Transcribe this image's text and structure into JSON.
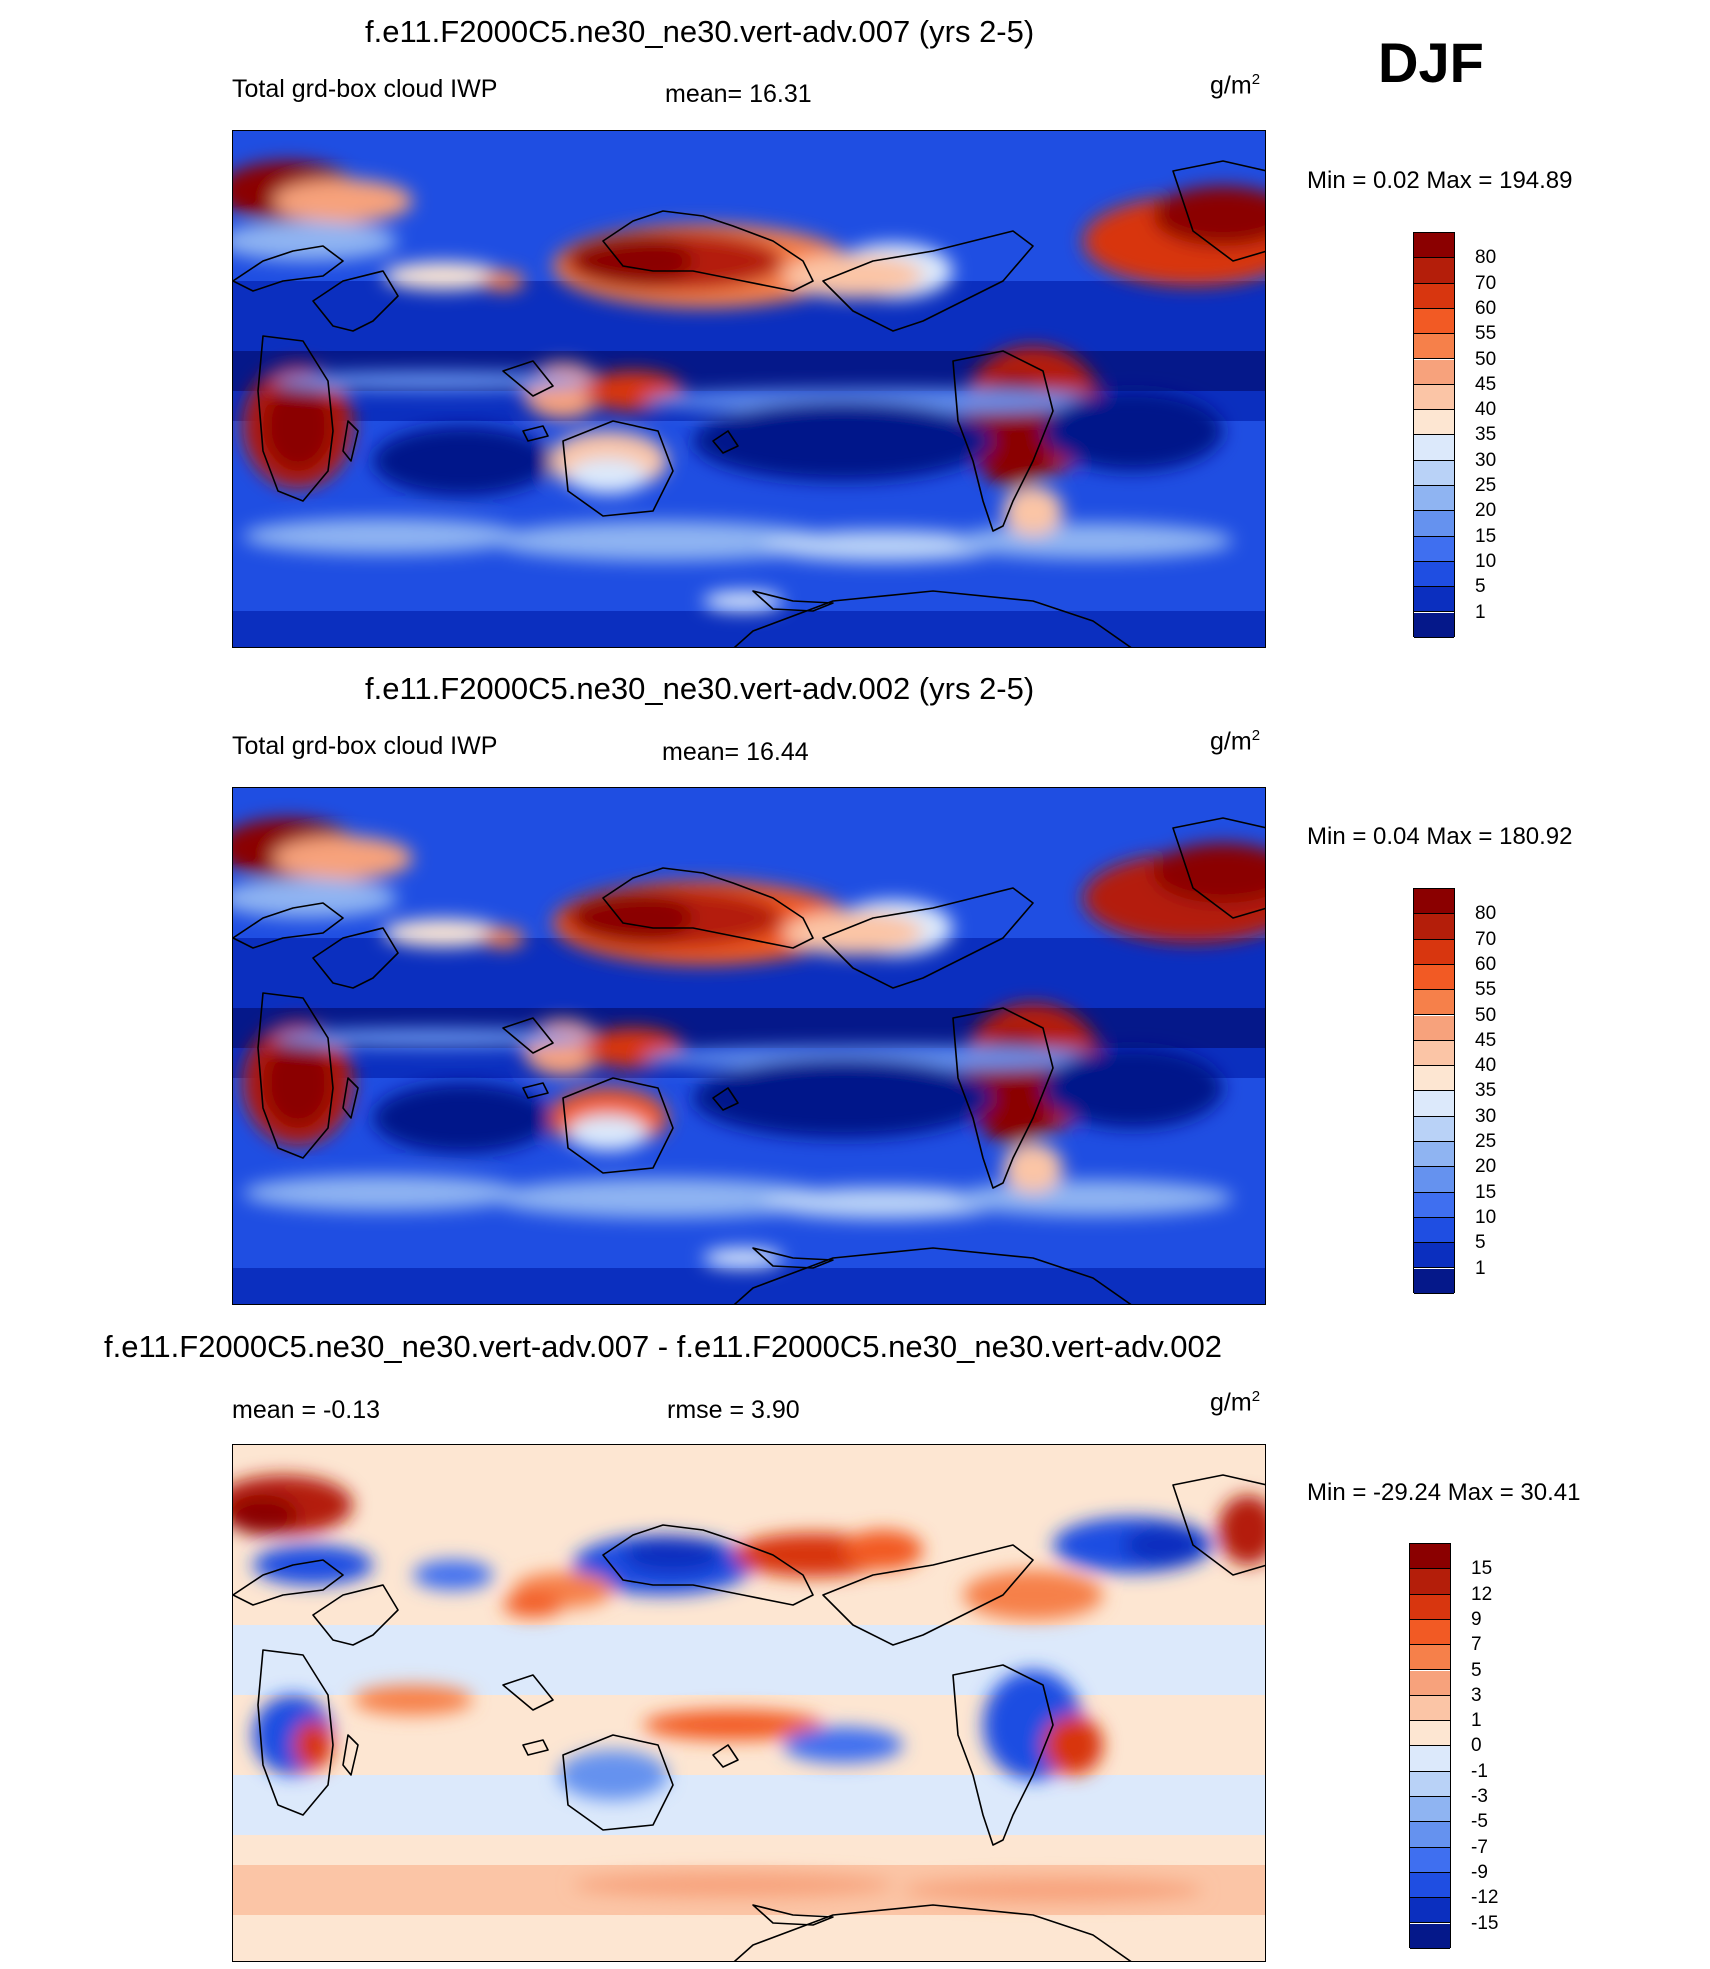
{
  "season": "DJF",
  "units_base": "g/m",
  "units_exp": "2",
  "chart_data": [
    {
      "type": "heatmap",
      "title": "f.e11.F2000C5.ne30_ne30.vert-adv.007 (yrs 2-5)",
      "variable": "Total grd-box cloud IWP",
      "mean_text": "mean=  16.31",
      "minmax_text": "Min =   0.02 Max = 194.89",
      "min": 0.02,
      "max": 194.89,
      "mean": 16.31,
      "levels": [
        "80",
        "70",
        "60",
        "55",
        "50",
        "45",
        "40",
        "35",
        "30",
        "25",
        "20",
        "15",
        "10",
        "5",
        "1"
      ],
      "colors": [
        "#8b0000",
        "#b41e0a",
        "#d8360f",
        "#f25a24",
        "#f6804a",
        "#f7a27c",
        "#fbc5a6",
        "#fde6d2",
        "#dce9fb",
        "#b9d2f7",
        "#8fb4f2",
        "#6592ef",
        "#3f6ff0",
        "#1f4ee2",
        "#0b2fbf",
        "#05188a"
      ]
    },
    {
      "type": "heatmap",
      "title": "f.e11.F2000C5.ne30_ne30.vert-adv.002 (yrs 2-5)",
      "variable": "Total grd-box cloud IWP",
      "mean_text": "mean=  16.44",
      "minmax_text": "Min =   0.04 Max = 180.92",
      "min": 0.04,
      "max": 180.92,
      "mean": 16.44,
      "levels": [
        "80",
        "70",
        "60",
        "55",
        "50",
        "45",
        "40",
        "35",
        "30",
        "25",
        "20",
        "15",
        "10",
        "5",
        "1"
      ],
      "colors": [
        "#8b0000",
        "#b41e0a",
        "#d8360f",
        "#f25a24",
        "#f6804a",
        "#f7a27c",
        "#fbc5a6",
        "#fde6d2",
        "#dce9fb",
        "#b9d2f7",
        "#8fb4f2",
        "#6592ef",
        "#3f6ff0",
        "#1f4ee2",
        "#0b2fbf",
        "#05188a"
      ]
    },
    {
      "type": "heatmap",
      "title": "f.e11.F2000C5.ne30_ne30.vert-adv.007 - f.e11.F2000C5.ne30_ne30.vert-adv.002",
      "mean_text": "mean =  -0.13",
      "rmse_text": "rmse =   3.90",
      "minmax_text": "Min = -29.24 Max =  30.41",
      "min": -29.24,
      "max": 30.41,
      "mean": -0.13,
      "rmse": 3.9,
      "levels": [
        "15",
        "12",
        "9",
        "7",
        "5",
        "3",
        "1",
        "0",
        "-1",
        "-3",
        "-5",
        "-7",
        "-9",
        "-12",
        "-15"
      ],
      "colors": [
        "#8b0000",
        "#b41e0a",
        "#d8360f",
        "#f25a24",
        "#f6804a",
        "#f7a27c",
        "#fbc5a6",
        "#fde6d2",
        "#dce9fb",
        "#b9d2f7",
        "#8fb4f2",
        "#6592ef",
        "#3f6ff0",
        "#1f4ee2",
        "#0b2fbf",
        "#05188a"
      ]
    }
  ]
}
